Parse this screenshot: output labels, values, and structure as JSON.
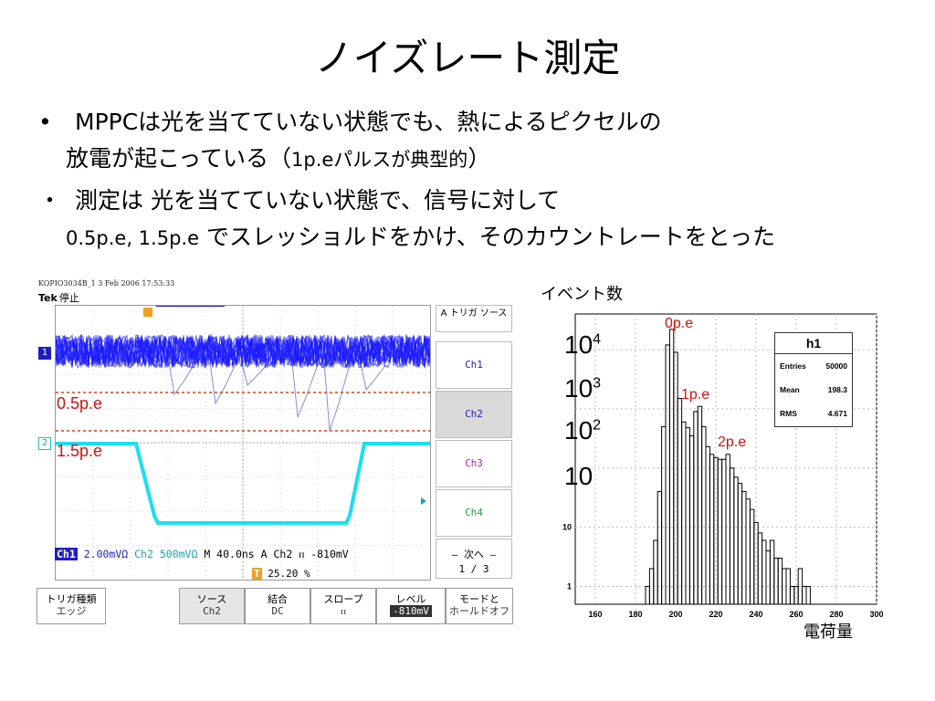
{
  "title": "ノイズレート測定",
  "bullets": [
    {
      "marker": "•",
      "text": "MPPCは光を当てていない状態でも、熱によるピクセルの"
    },
    {
      "marker": "",
      "text_a": "放電が起こっている（",
      "text_b": "1p.eパルスが典型的",
      "text_c": "）"
    },
    {
      "marker": "・",
      "text": "測定は 光を当てていない状態で、信号に対して"
    },
    {
      "marker": "",
      "text_a": "0.5p.e, 1.5p.e",
      "text_b": " でスレッショルドをかけ、そのカウントレートをとった"
    }
  ],
  "scope": {
    "header": "KOPIO3034B_1   3 Feb 2006   17:53:33",
    "tek": "Tek",
    "tek_state": "停止",
    "menu_title": "A トリガ ソース",
    "channels": [
      "Ch1",
      "Ch2",
      "Ch3",
      "Ch4"
    ],
    "channel_colors": [
      "#1f1fbf",
      "#1f1fbf",
      "#b020b0",
      "#20a040"
    ],
    "selected_channel": "Ch2",
    "next_label": "– 次へ –",
    "page": "1 / 3",
    "readout": {
      "ch1": "Ch1",
      "ch1_scale": "2.00mVΩ",
      "ch2": "Ch2",
      "ch2_scale": "500mVΩ",
      "timebase": "M 40.0ns",
      "trigger": "A  Ch2",
      "slope": "ⲡ",
      "level": "-810mV"
    },
    "trigger_pct": "25.20 %",
    "ch1_marker": "1",
    "ch2_marker": "2",
    "bottom_buttons": [
      {
        "top": "トリガ種類",
        "value": "エッジ"
      },
      {
        "top": "ソース",
        "value": "Ch2"
      },
      {
        "top": "結合",
        "value": "DC"
      },
      {
        "top": "スロープ",
        "value": "ⲡ"
      },
      {
        "top": "レベル",
        "value": "-810mV"
      },
      {
        "top": "モードと",
        "value": "ホールドオフ"
      }
    ],
    "threshold_labels": [
      "0.5p.e",
      "1.5p.e"
    ],
    "colors": {
      "ch1": "#1a1aff",
      "ch2": "#18e0f0",
      "threshold": "#e04010",
      "trigger": "#f0a020"
    }
  },
  "histogram": {
    "ylabel": "イベント数",
    "xlabel": "電荷量",
    "powers": [
      {
        "base": "10",
        "exp": "4"
      },
      {
        "base": "10",
        "exp": "3"
      },
      {
        "base": "10",
        "exp": "2"
      },
      {
        "base": "10",
        "exp": ""
      }
    ],
    "peaks": [
      "0p.e",
      "1p.e",
      "2p.e"
    ],
    "stats": {
      "name": "h1",
      "entries_label": "Entries",
      "entries": "50000",
      "mean_label": "Mean",
      "mean": "198.3",
      "rms_label": "RMS",
      "rms": "4.671"
    },
    "x_ticks": [
      "160",
      "180",
      "200",
      "220",
      "240",
      "260",
      "280",
      "300"
    ],
    "y_ticks": [
      "10",
      "1"
    ]
  },
  "chart_data": {
    "type": "bar",
    "title": "h1",
    "xlabel": "電荷量",
    "ylabel": "イベント数",
    "log_y": true,
    "xlim": [
      150,
      300
    ],
    "ylim": [
      0.5,
      40000
    ],
    "x": [
      186,
      188,
      190,
      192,
      194,
      196,
      198,
      200,
      202,
      204,
      206,
      208,
      210,
      212,
      214,
      216,
      218,
      220,
      222,
      224,
      226,
      228,
      230,
      232,
      234,
      236,
      238,
      240,
      242,
      244,
      246,
      248,
      250,
      252,
      254,
      256,
      258,
      260,
      262,
      264,
      266
    ],
    "values": [
      1,
      2,
      6,
      40,
      500,
      12000,
      22000,
      9000,
      1500,
      600,
      480,
      350,
      900,
      1100,
      500,
      230,
      170,
      150,
      140,
      140,
      170,
      100,
      70,
      55,
      40,
      30,
      20,
      12,
      8,
      6,
      4,
      6,
      3,
      3,
      2,
      2,
      1,
      1,
      2,
      1,
      1
    ]
  }
}
